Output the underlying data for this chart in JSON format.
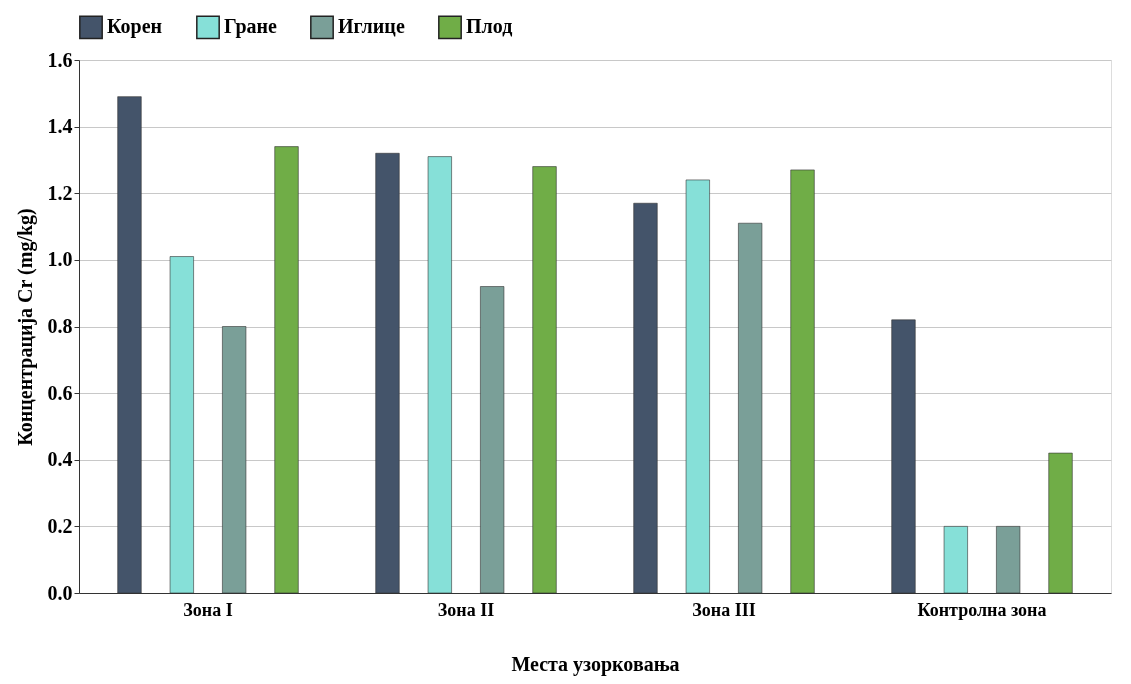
{
  "chart_data": {
    "type": "bar",
    "xlabel": "Места узорковања",
    "ylabel": "Концентрација Cr (mg/kg)",
    "categories": [
      "Зона I",
      "Зона II",
      "Зона III",
      "Контролна зона"
    ],
    "series": [
      {
        "name": "Корен",
        "color": "#44546a",
        "values": [
          1.49,
          1.32,
          1.17,
          0.82
        ]
      },
      {
        "name": "Гране",
        "color": "#86e0d8",
        "values": [
          1.01,
          1.31,
          1.24,
          0.2
        ]
      },
      {
        "name": "Иглице",
        "color": "#7a9f98",
        "values": [
          0.8,
          0.92,
          1.11,
          0.2
        ]
      },
      {
        "name": "Плод",
        "color": "#70ad47",
        "values": [
          1.34,
          1.28,
          1.27,
          0.42
        ]
      }
    ],
    "ylim": [
      0,
      1.6
    ],
    "yticks": [
      {
        "value": 0,
        "label": "0.0"
      },
      0.2,
      0.4,
      0.6,
      0.8,
      {
        "value": 1,
        "label": "1.0"
      },
      1.2,
      1.4,
      1.6
    ],
    "grid": "y",
    "legend": "top"
  }
}
